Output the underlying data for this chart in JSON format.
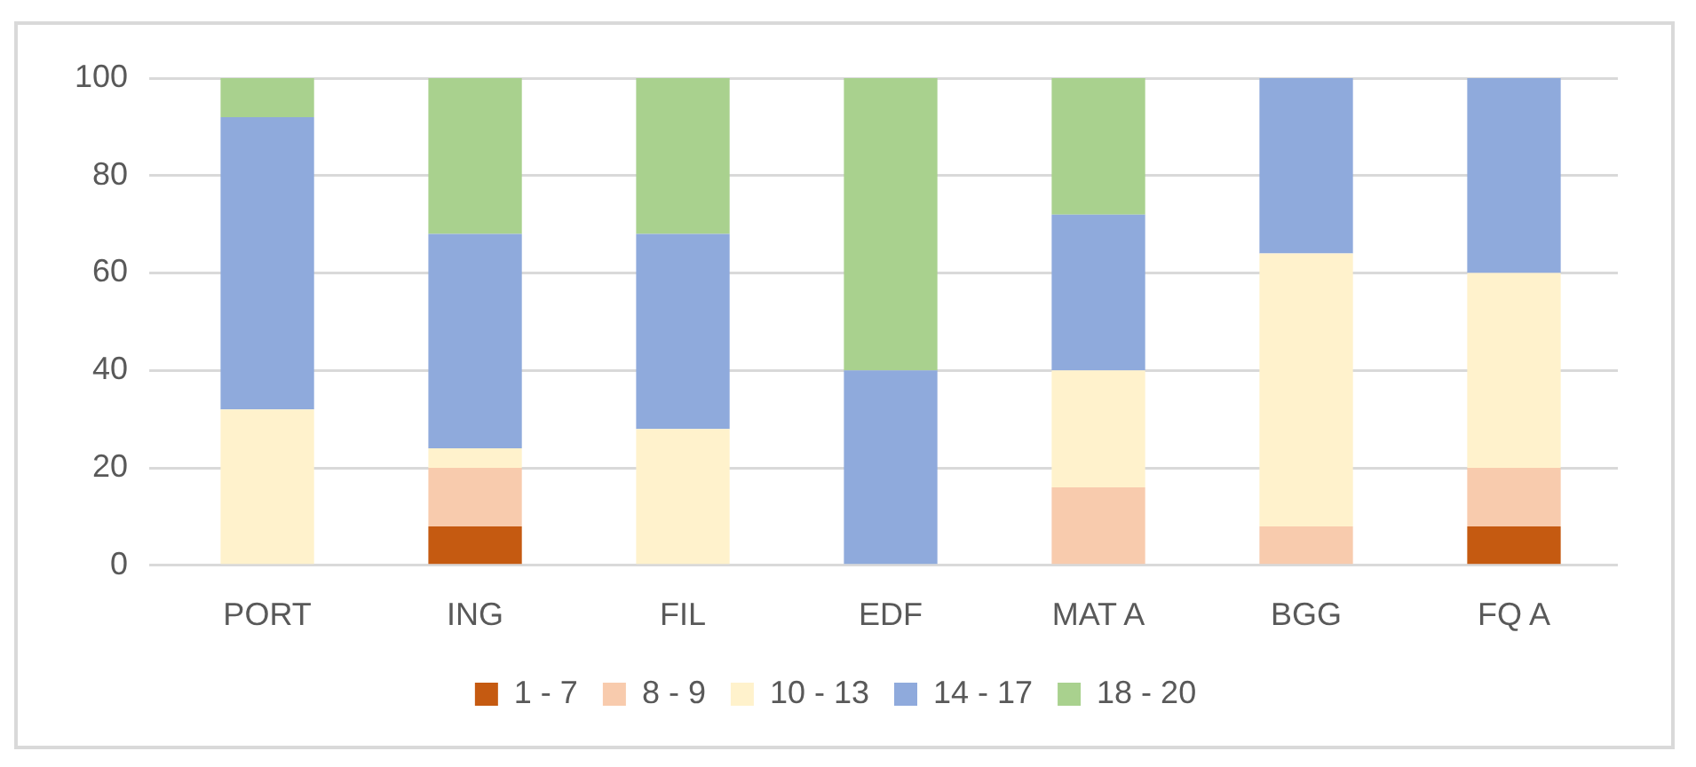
{
  "chart_data": {
    "type": "bar",
    "stacked": true,
    "categories": [
      "PORT",
      "ING",
      "FIL",
      "EDF",
      "MAT A",
      "BGG",
      "FQ A"
    ],
    "series": [
      {
        "name": "1 - 7",
        "color": "#c55a11",
        "values": [
          0,
          8,
          0,
          0,
          0,
          0,
          8
        ]
      },
      {
        "name": "8 - 9",
        "color": "#f8cbad",
        "values": [
          0,
          12,
          0,
          0,
          16,
          8,
          12
        ]
      },
      {
        "name": "10 - 13",
        "color": "#fff2cc",
        "values": [
          32,
          4,
          28,
          0,
          24,
          56,
          40
        ]
      },
      {
        "name": "14 - 17",
        "color": "#8faadc",
        "values": [
          60,
          44,
          40,
          40,
          32,
          36,
          40
        ]
      },
      {
        "name": "18 - 20",
        "color": "#a9d18e",
        "values": [
          8,
          32,
          32,
          60,
          28,
          0,
          0
        ]
      }
    ],
    "ylim": [
      0,
      100
    ],
    "yticks": [
      0,
      20,
      40,
      60,
      80,
      100
    ],
    "grid": "y",
    "legend": "bottom"
  }
}
